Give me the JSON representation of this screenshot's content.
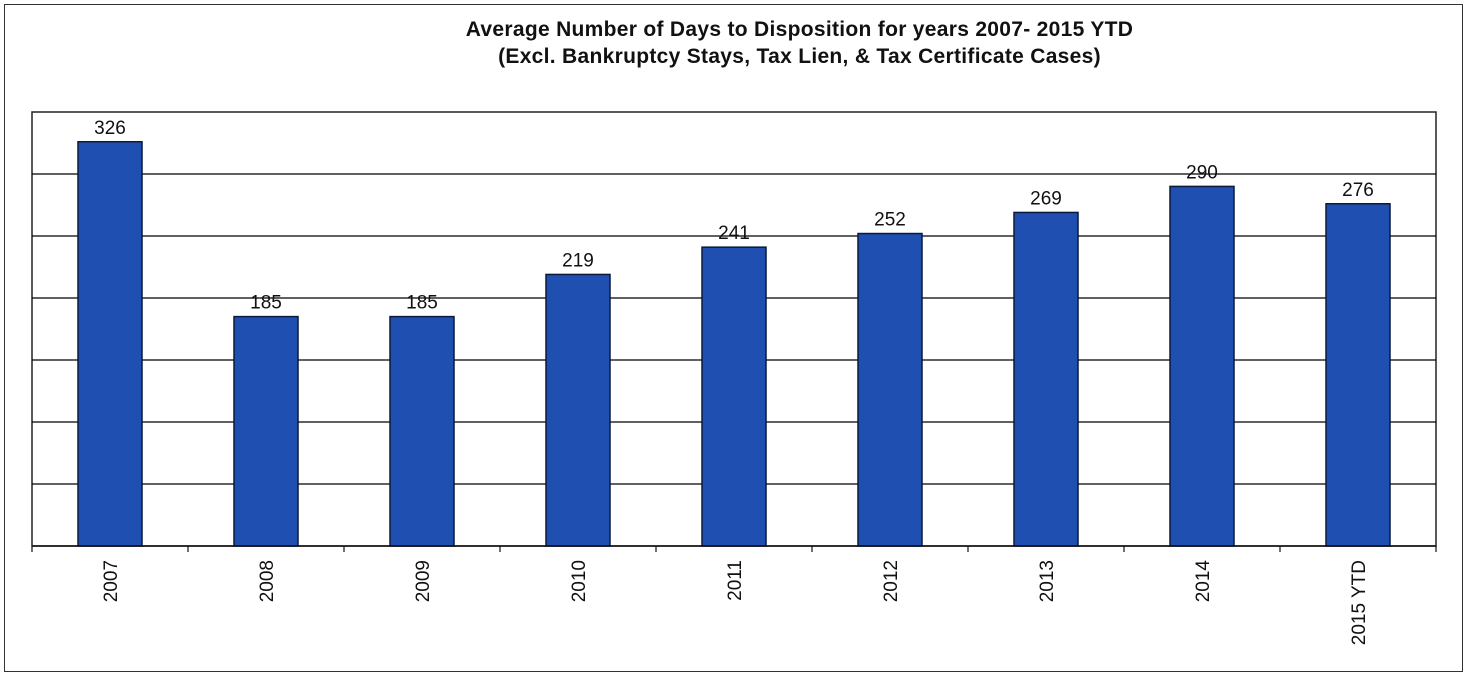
{
  "chart_data": {
    "type": "bar",
    "title": "Average Number of Days to Disposition  for years 2007- 2015 YTD",
    "subtitle": "(Excl. Bankruptcy Stays, Tax Lien, & Tax Certificate Cases)",
    "categories": [
      "2007",
      "2008",
      "2009",
      "2010",
      "2011",
      "2012",
      "2013",
      "2014",
      "2015 YTD"
    ],
    "values": [
      326,
      185,
      185,
      219,
      241,
      252,
      269,
      290,
      276
    ],
    "xlabel": "",
    "ylabel": "",
    "ylim": [
      0,
      350
    ],
    "y_gridline_step": 50,
    "y_tick_labels_shown": false,
    "grid": true,
    "legend": "none",
    "data_labels": true,
    "bar_color": "#1f4fb0",
    "bar_edge_color": "#0a1a3a",
    "gridline_color": "#000000"
  }
}
